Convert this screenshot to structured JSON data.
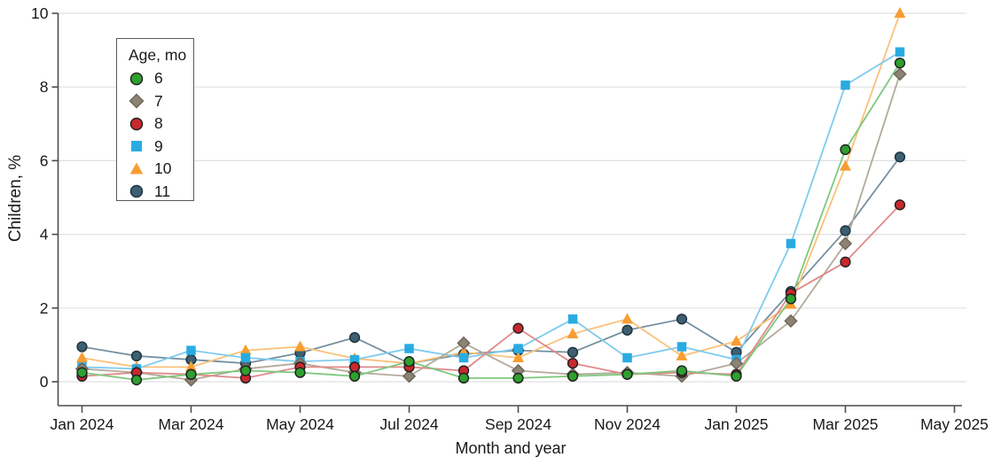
{
  "figure": {
    "y_axis_title": "Children, %",
    "x_axis_title": "Month and year",
    "legend_title": "Age, mo"
  },
  "chart_data": {
    "type": "line",
    "title": "",
    "xlabel": "Month and year",
    "ylabel": "Children, %",
    "ylim": [
      0,
      10
    ],
    "y_ticks": [
      0,
      2,
      4,
      6,
      8,
      10
    ],
    "x_tick_labels": [
      "Jan 2024",
      "Mar 2024",
      "May 2024",
      "Jul 2024",
      "Sep 2024",
      "Nov 2024",
      "Jan 2025",
      "Mar 2025",
      "May 2025"
    ],
    "categories": [
      "Jan 2024",
      "Feb 2024",
      "Mar 2024",
      "Apr 2024",
      "May 2024",
      "Jun 2024",
      "Jul 2024",
      "Aug 2024",
      "Sep 2024",
      "Oct 2024",
      "Nov 2024",
      "Dec 2024",
      "Jan 2025",
      "Feb 2025",
      "Mar 2025",
      "Apr 2025"
    ],
    "grid": true,
    "legend_position": "upper left",
    "legend_title": "Age, mo",
    "series": [
      {
        "name": "6",
        "marker": "circle",
        "color": "#2ea02e",
        "edge": "#232323",
        "line_color": "#7dc87d",
        "values": [
          0.25,
          0.05,
          0.2,
          0.3,
          0.25,
          0.15,
          0.55,
          0.1,
          0.1,
          0.15,
          0.2,
          0.3,
          0.15,
          2.25,
          6.3,
          8.65
        ]
      },
      {
        "name": "7",
        "marker": "diamond",
        "color": "#8c8374",
        "edge": "#6f675c",
        "line_color": "#b3a99a",
        "values": [
          0.35,
          0.25,
          0.05,
          0.35,
          0.5,
          0.25,
          0.15,
          1.05,
          0.3,
          0.2,
          0.25,
          0.15,
          0.5,
          1.65,
          3.75,
          8.35
        ]
      },
      {
        "name": "8",
        "marker": "circle",
        "color": "#c9282d",
        "edge": "#232323",
        "line_color": "#e08a8a",
        "values": [
          0.15,
          0.25,
          0.2,
          0.1,
          0.4,
          0.4,
          0.4,
          0.3,
          1.45,
          0.5,
          0.2,
          0.25,
          0.2,
          2.4,
          3.25,
          4.8
        ]
      },
      {
        "name": "9",
        "marker": "square",
        "color": "#29abe2",
        "edge": "none",
        "line_color": "#7fcbee",
        "values": [
          0.4,
          0.35,
          0.85,
          0.65,
          0.55,
          0.6,
          0.9,
          0.65,
          0.9,
          1.7,
          0.65,
          0.95,
          0.6,
          3.75,
          8.05,
          8.95
        ]
      },
      {
        "name": "10",
        "marker": "triangle",
        "color": "#f99d31",
        "edge": "none",
        "line_color": "#fbc07a",
        "values": [
          0.65,
          0.4,
          0.4,
          0.85,
          0.95,
          0.63,
          0.5,
          0.8,
          0.65,
          1.3,
          1.7,
          0.7,
          1.1,
          2.1,
          5.85,
          10
        ]
      },
      {
        "name": "11",
        "marker": "circle",
        "color": "#3e5f71",
        "edge": "#1f3642",
        "line_color": "#74909f",
        "values": [
          0.95,
          0.7,
          0.6,
          0.5,
          0.78,
          1.2,
          0.5,
          0.75,
          0.85,
          0.8,
          1.4,
          1.7,
          0.8,
          2.45,
          4.1,
          6.1
        ]
      }
    ],
    "style": {
      "axis_color": "#4d4d4d",
      "grid_color": "#e0e0e0",
      "text_color": "#1a1a1a"
    }
  }
}
